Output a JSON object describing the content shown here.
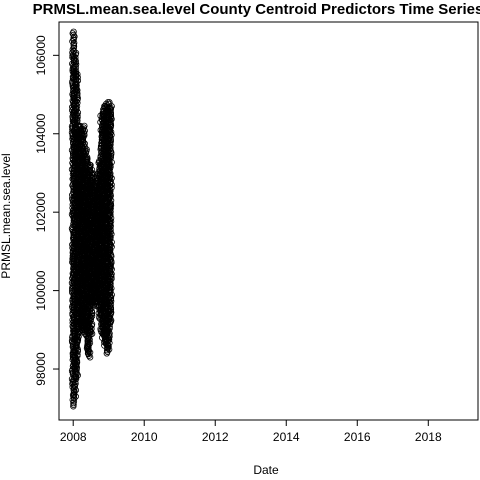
{
  "chart_data": {
    "type": "scatter",
    "title": "PRMSL.mean.sea.level County Centroid Predictors Time Series",
    "xlabel": "Date",
    "ylabel": "PRMSL.mean.sea.level",
    "xlim": [
      2007.6,
      2019.4
    ],
    "ylim": [
      96700,
      106850
    ],
    "x_ticks": [
      2008,
      2010,
      2012,
      2014,
      2016,
      2018
    ],
    "x_tick_labels": [
      "2008",
      "2010",
      "2012",
      "2014",
      "2016",
      "2018"
    ],
    "y_ticks": [
      98000,
      100000,
      102000,
      104000,
      106000
    ],
    "y_tick_labels": [
      "98000",
      "100000",
      "102000",
      "104000",
      "106000"
    ],
    "grid": false,
    "legend": "none",
    "marker": "open-circle",
    "point_color": "#000000",
    "series": [
      {
        "envelope": [
          {
            "x": 2008.0,
            "min": 97050,
            "max": 106600
          },
          {
            "x": 2008.05,
            "min": 97300,
            "max": 106100
          },
          {
            "x": 2008.1,
            "min": 97800,
            "max": 105600
          },
          {
            "x": 2008.15,
            "min": 98700,
            "max": 104200
          },
          {
            "x": 2008.2,
            "min": 99100,
            "max": 104200
          },
          {
            "x": 2008.25,
            "min": 99000,
            "max": 104100
          },
          {
            "x": 2008.3,
            "min": 99000,
            "max": 104200
          },
          {
            "x": 2008.35,
            "min": 98900,
            "max": 103600
          },
          {
            "x": 2008.4,
            "min": 98400,
            "max": 103400
          },
          {
            "x": 2008.45,
            "min": 98300,
            "max": 103200
          },
          {
            "x": 2008.5,
            "min": 98900,
            "max": 103200
          },
          {
            "x": 2008.55,
            "min": 99600,
            "max": 102900
          },
          {
            "x": 2008.6,
            "min": 99700,
            "max": 102700
          },
          {
            "x": 2008.65,
            "min": 99700,
            "max": 102800
          },
          {
            "x": 2008.7,
            "min": 99600,
            "max": 103000
          },
          {
            "x": 2008.75,
            "min": 99300,
            "max": 103300
          },
          {
            "x": 2008.8,
            "min": 98900,
            "max": 104500
          },
          {
            "x": 2008.85,
            "min": 98800,
            "max": 104700
          },
          {
            "x": 2008.9,
            "min": 98600,
            "max": 104700
          },
          {
            "x": 2008.95,
            "min": 98400,
            "max": 104800
          },
          {
            "x": 2009.0,
            "min": 98500,
            "max": 104800
          },
          {
            "x": 2009.05,
            "min": 99200,
            "max": 104700
          }
        ]
      }
    ]
  }
}
